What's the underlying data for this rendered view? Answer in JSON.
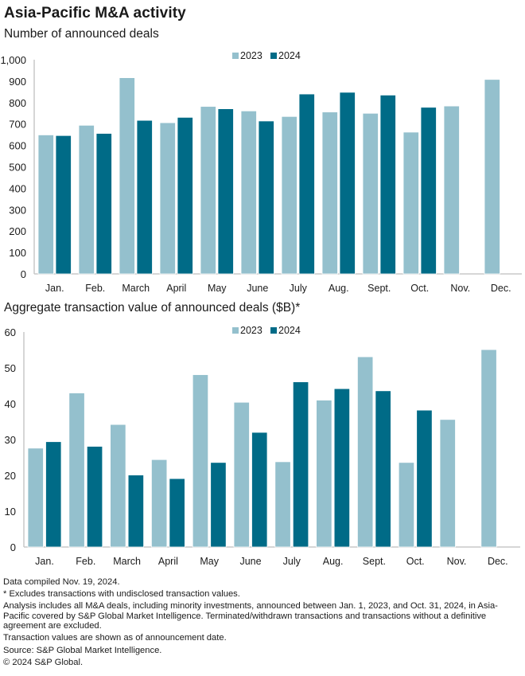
{
  "header": {
    "title": "Asia-Pacific M&A activity",
    "subtitle_top": "Number of announced deals",
    "subtitle_bottom": "Aggregate transaction value of announced deals ($B)*"
  },
  "colors": {
    "2023": "#94c0cd",
    "2024": "#006b87",
    "axis": "#c8c8c8"
  },
  "chart_data": [
    {
      "type": "bar",
      "title": "Number of announced deals",
      "xlabel": "",
      "ylabel": "",
      "ylim": [
        0,
        1000
      ],
      "yticks": [
        0,
        100,
        200,
        300,
        400,
        500,
        600,
        700,
        800,
        900,
        1000
      ],
      "ytick_labels": [
        "0",
        "100",
        "200",
        "300",
        "400",
        "500",
        "600",
        "700",
        "800",
        "900",
        "1,000"
      ],
      "grid": false,
      "legend": "top-center",
      "categories": [
        "Jan.",
        "Feb.",
        "March",
        "April",
        "May",
        "June",
        "July",
        "Aug.",
        "Sept.",
        "Oct.",
        "Nov.",
        "Dec."
      ],
      "series": [
        {
          "name": "2023",
          "values": [
            649,
            694,
            916,
            706,
            782,
            761,
            735,
            756,
            750,
            662,
            784,
            908
          ]
        },
        {
          "name": "2024",
          "values": [
            646,
            656,
            717,
            731,
            771,
            714,
            840,
            848,
            835,
            778,
            null,
            null
          ]
        }
      ]
    },
    {
      "type": "bar",
      "title": "Aggregate transaction value of announced deals ($B)*",
      "xlabel": "",
      "ylabel": "",
      "ylim": [
        0,
        60
      ],
      "yticks": [
        0,
        10,
        20,
        30,
        40,
        50,
        60
      ],
      "ytick_labels": [
        "0",
        "10",
        "20",
        "30",
        "40",
        "50",
        "60"
      ],
      "grid": false,
      "legend": "top-center",
      "categories": [
        "Jan.",
        "Feb.",
        "March",
        "April",
        "May",
        "June",
        "July",
        "Aug.",
        "Sept.",
        "Oct.",
        "Nov.",
        "Dec."
      ],
      "series": [
        {
          "name": "2023",
          "values": [
            27.6,
            43.0,
            34.2,
            24.4,
            48.1,
            40.4,
            23.8,
            41.0,
            53.1,
            23.6,
            35.6,
            55.1
          ]
        },
        {
          "name": "2024",
          "values": [
            29.4,
            28.1,
            20.1,
            19.1,
            23.6,
            32.0,
            46.1,
            44.2,
            43.6,
            38.2,
            null,
            null
          ]
        }
      ]
    }
  ],
  "notes": [
    "Data compiled Nov. 19, 2024.",
    "* Excludes transactions with undisclosed transaction values.",
    "Analysis includes all M&A deals, including minority investments, announced between Jan. 1, 2023, and Oct. 31, 2024, in Asia-Pacific covered by S&P Global Market Intelligence. Terminated/withdrawn transactions and transactions without a definitive agreement are excluded.",
    "Transaction values are shown as of announcement date.",
    "Source: S&P Global Market Intelligence.",
    "© 2024 S&P Global."
  ]
}
